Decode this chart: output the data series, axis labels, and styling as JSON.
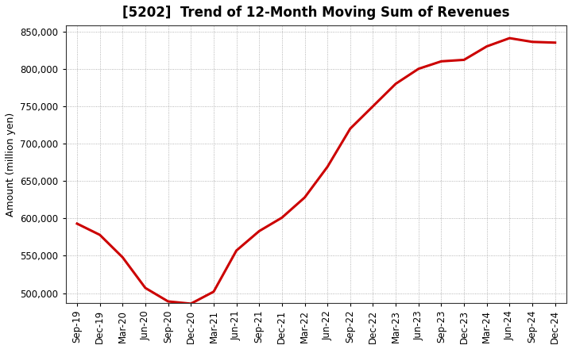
{
  "title": "[5202]  Trend of 12-Month Moving Sum of Revenues",
  "ylabel": "Amount (million yen)",
  "line_color": "#CC0000",
  "background_color": "#FFFFFF",
  "plot_bg_color": "#FFFFFF",
  "grid_color": "#888888",
  "ylim": [
    487000,
    858000
  ],
  "yticks": [
    500000,
    550000,
    600000,
    650000,
    700000,
    750000,
    800000,
    850000
  ],
  "x_labels": [
    "Sep-19",
    "Dec-19",
    "Mar-20",
    "Jun-20",
    "Sep-20",
    "Dec-20",
    "Mar-21",
    "Jun-21",
    "Sep-21",
    "Dec-21",
    "Mar-22",
    "Jun-22",
    "Sep-22",
    "Dec-22",
    "Mar-23",
    "Jun-23",
    "Sep-23",
    "Dec-23",
    "Mar-24",
    "Jun-24",
    "Sep-24",
    "Dec-24"
  ],
  "values": [
    593000,
    578000,
    548000,
    507000,
    489000,
    486000,
    502000,
    557000,
    583000,
    601000,
    628000,
    669000,
    720000,
    750000,
    780000,
    800000,
    810000,
    812000,
    830000,
    841000,
    836000,
    835000
  ],
  "title_fontsize": 12,
  "ylabel_fontsize": 9,
  "tick_fontsize": 8.5,
  "linewidth": 2.2
}
